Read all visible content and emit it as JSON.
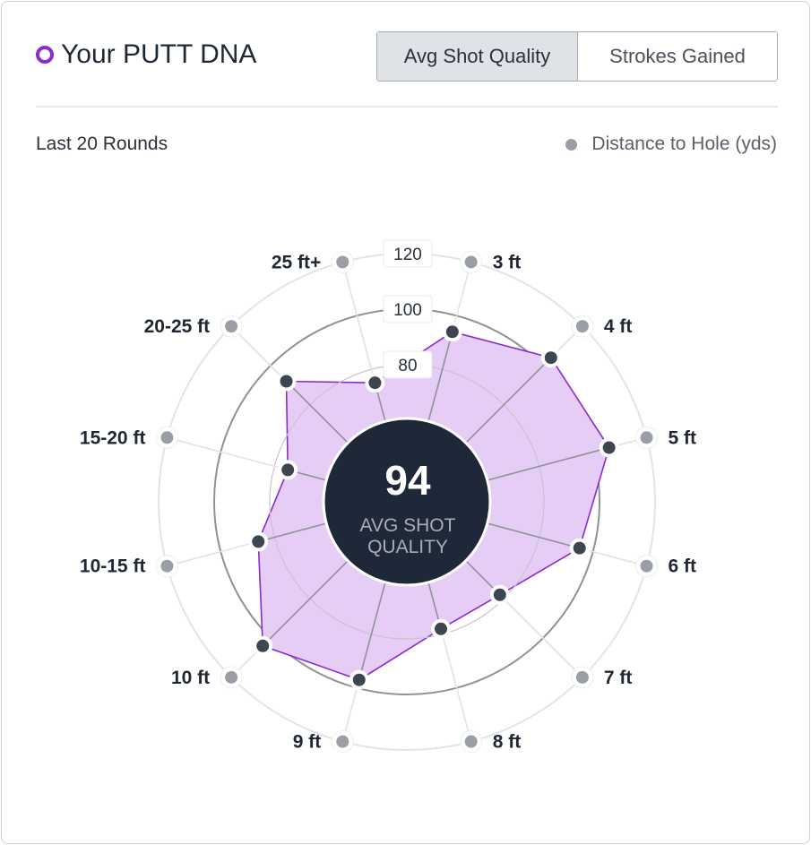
{
  "header": {
    "title": "Your PUTT DNA",
    "tabs": [
      "Avg Shot Quality",
      "Strokes Gained"
    ],
    "active_tab": "Avg Shot Quality"
  },
  "subtitle": "Last 20 Rounds",
  "legend": {
    "label": "Distance to Hole (yds)"
  },
  "center": {
    "value": "94",
    "line1": "AVG SHOT",
    "line2": "QUALITY"
  },
  "colors": {
    "accent": "#8a2bd0",
    "fill": "#e6cdf5",
    "point": "#3d4650",
    "outer_point": "#9a9ea6",
    "center_bg": "#1f2838"
  },
  "chart_data": {
    "type": "radar",
    "title": "Your PUTT DNA",
    "categories": [
      "3 ft",
      "4 ft",
      "5 ft",
      "6 ft",
      "7 ft",
      "8 ft",
      "9 ft",
      "10 ft",
      "10-15 ft",
      "15-20 ft",
      "20-25 ft",
      "25 ft+"
    ],
    "values": [
      94,
      104,
      106,
      95,
      78,
      78,
      97,
      104,
      86,
      75,
      92,
      75
    ],
    "ring_labels": [
      "80",
      "100",
      "120"
    ],
    "rings": [
      80,
      100,
      120
    ],
    "range": [
      62,
      120
    ]
  }
}
